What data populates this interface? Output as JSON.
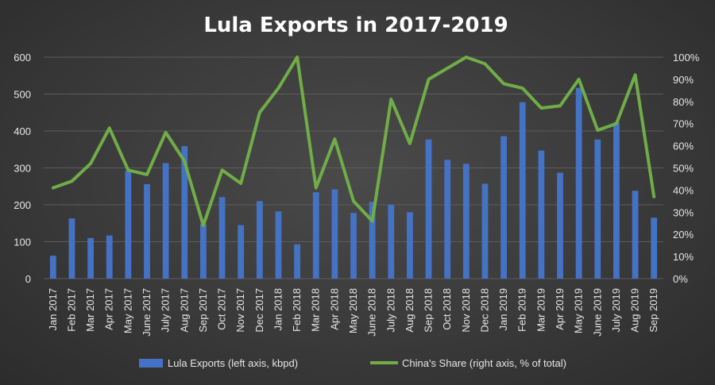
{
  "chart_data": {
    "type": "bar",
    "title": "Lula Exports in 2017-2019",
    "categories": [
      "Jan 2017",
      "Feb 2017",
      "Mar 2017",
      "Apr 2017",
      "May 2017",
      "June 2017",
      "July 2017",
      "Aug 2017",
      "Sep 2017",
      "Oct 2017",
      "Nov 2017",
      "Dec 2017",
      "Jan 2018",
      "Feb 2018",
      "Mar 2018",
      "Apr 2018",
      "May 2018",
      "June 2018",
      "July 2018",
      "Aug 2018",
      "Sep 2018",
      "Oct 2018",
      "Nov 2018",
      "Dec 2018",
      "Jan 2019",
      "Feb 2019",
      "Mar 2019",
      "Apr 2019",
      "May 2019",
      "June 2019",
      "July 2019",
      "Aug 2019",
      "Sep 2019"
    ],
    "series": [
      {
        "name": "Lula Exports (left axis, kbpd)",
        "type": "bar",
        "axis": "left",
        "color": "#4472c4",
        "values": [
          62,
          163,
          110,
          117,
          292,
          256,
          313,
          359,
          148,
          221,
          145,
          210,
          182,
          93,
          234,
          242,
          178,
          208,
          200,
          180,
          377,
          322,
          311,
          257,
          386,
          478,
          347,
          287,
          517,
          377,
          424,
          238,
          165
        ]
      },
      {
        "name": "China's Share (right axis, % of total)",
        "type": "line",
        "axis": "right",
        "color": "#70ad47",
        "values": [
          41,
          44,
          52,
          68,
          49,
          47,
          66,
          53,
          24,
          49,
          43,
          75,
          86,
          100,
          41,
          63,
          35,
          26,
          81,
          61,
          90,
          95,
          100,
          97,
          88,
          86,
          77,
          78,
          90,
          67,
          70,
          92,
          37
        ]
      }
    ],
    "y_left": {
      "min": 0,
      "max": 600,
      "step": 100,
      "ticks": [
        "0",
        "100",
        "200",
        "300",
        "400",
        "500",
        "600"
      ]
    },
    "y_right": {
      "min": 0,
      "max": 100,
      "step": 10,
      "ticks": [
        "0%",
        "10%",
        "20%",
        "30%",
        "40%",
        "50%",
        "60%",
        "70%",
        "80%",
        "90%",
        "100%"
      ]
    },
    "grid": true,
    "legend": "bottom"
  },
  "colors": {
    "bar": "#4472c4",
    "line": "#70ad47",
    "grid": "#5c5c5c",
    "text": "#e6e6e6"
  }
}
